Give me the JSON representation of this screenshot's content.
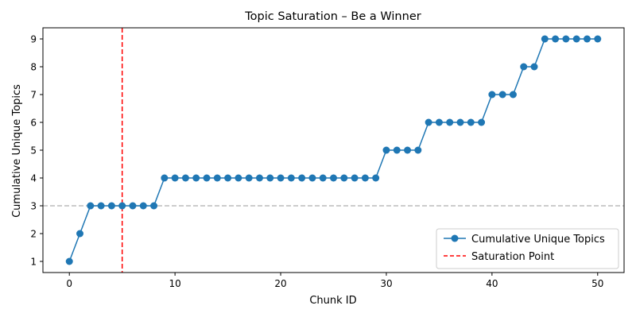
{
  "chart_data": {
    "type": "line",
    "title": "Topic Saturation – Be a Winner",
    "xlabel": "Chunk ID",
    "ylabel": "Cumulative Unique Topics",
    "xlim": [
      -2.5,
      52.5
    ],
    "ylim": [
      0.6,
      9.4
    ],
    "xticks": [
      0,
      10,
      20,
      30,
      40,
      50
    ],
    "yticks": [
      1,
      2,
      3,
      4,
      5,
      6,
      7,
      8,
      9
    ],
    "grid": false,
    "legend_position": "lower-right",
    "series": [
      {
        "name": "Cumulative Unique Topics",
        "color": "#1f77b4",
        "marker": "circle",
        "x": [
          0,
          1,
          2,
          3,
          4,
          5,
          6,
          7,
          8,
          9,
          10,
          11,
          12,
          13,
          14,
          15,
          16,
          17,
          18,
          19,
          20,
          21,
          22,
          23,
          24,
          25,
          26,
          27,
          28,
          29,
          30,
          31,
          32,
          33,
          34,
          35,
          36,
          37,
          38,
          39,
          40,
          41,
          42,
          43,
          44,
          45,
          46,
          47,
          48,
          49,
          50
        ],
        "values": [
          1,
          2,
          3,
          3,
          3,
          3,
          3,
          3,
          3,
          4,
          4,
          4,
          4,
          4,
          4,
          4,
          4,
          4,
          4,
          4,
          4,
          4,
          4,
          4,
          4,
          4,
          4,
          4,
          4,
          4,
          5,
          5,
          5,
          5,
          6,
          6,
          6,
          6,
          6,
          6,
          7,
          7,
          7,
          8,
          8,
          9,
          9,
          9,
          9,
          9,
          9
        ]
      }
    ],
    "annotations": {
      "saturation_line": {
        "name": "Saturation Point",
        "x": 5,
        "color": "#ff0000",
        "style": "dashed"
      },
      "reference_line": {
        "y": 3,
        "color": "#bbbbbb",
        "style": "dashed"
      }
    }
  }
}
